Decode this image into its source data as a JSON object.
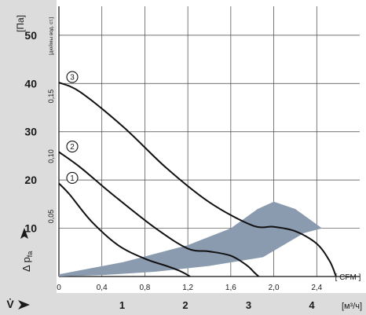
{
  "chart_data": {
    "type": "line",
    "y_unit_label": "[Па]",
    "y_secondary_label": "[дюймы вод. ст.]",
    "y_axis_symbol": "Δ p",
    "y_axis_symbol_sub": "fa",
    "x_unit_label": "[ CFM ]",
    "x_secondary_unit_label": "[м³/ч]",
    "x_axis_symbol": "V̇",
    "xlim": [
      0,
      2.8
    ],
    "ylim": [
      0,
      56
    ],
    "grid": true,
    "x_ticks": [
      "0",
      "0,4",
      "0,8",
      "1,2",
      "1,6",
      "2,0",
      "2,4"
    ],
    "x_tick_values": [
      0,
      0.4,
      0.8,
      1.2,
      1.6,
      2.0,
      2.4
    ],
    "y_ticks": [
      "10",
      "20",
      "30",
      "40",
      "50"
    ],
    "y_tick_values": [
      10,
      20,
      30,
      40,
      50
    ],
    "y_secondary_ticks": [
      "0,05",
      "0,10",
      "0,15"
    ],
    "y_secondary_tick_values": [
      0.05,
      0.1,
      0.15
    ],
    "x_secondary_ticks": [
      "1",
      "2",
      "3",
      "4"
    ],
    "x_secondary_tick_values": [
      1,
      2,
      3,
      4
    ],
    "operating_region_color": "#8a9bb0",
    "operating_region": [
      [
        0,
        0.45
      ],
      [
        0.6,
        3
      ],
      [
        1.2,
        6.5
      ],
      [
        1.6,
        10
      ],
      [
        1.85,
        14
      ],
      [
        2.0,
        15.5
      ],
      [
        2.2,
        14
      ],
      [
        2.45,
        10
      ],
      [
        2.28,
        9
      ],
      [
        1.9,
        4
      ],
      [
        1.4,
        2.2
      ],
      [
        0.9,
        1
      ],
      [
        0.4,
        0.3
      ],
      [
        0,
        0
      ]
    ],
    "series": [
      {
        "marker": "1",
        "x": [
          0,
          0.1,
          0.3,
          0.55,
          0.8,
          1.0,
          1.12,
          1.2,
          1.22
        ],
        "y": [
          19.3,
          17,
          11.5,
          6.5,
          3.7,
          2.2,
          1.2,
          0.3,
          0
        ]
      },
      {
        "marker": "2",
        "x": [
          0,
          0.2,
          0.5,
          0.9,
          1.2,
          1.4,
          1.6,
          1.75,
          1.82,
          1.86
        ],
        "y": [
          25.8,
          22.6,
          17,
          10,
          5.8,
          5.2,
          4.3,
          2.3,
          0.8,
          0
        ]
      },
      {
        "marker": "3",
        "x": [
          0,
          0.2,
          0.6,
          1.0,
          1.4,
          1.8,
          2.0,
          2.2,
          2.4,
          2.52,
          2.58
        ],
        "y": [
          40.2,
          38.2,
          31,
          22.5,
          15.4,
          10.6,
          10.3,
          9.4,
          6.8,
          3.2,
          0
        ]
      }
    ]
  }
}
